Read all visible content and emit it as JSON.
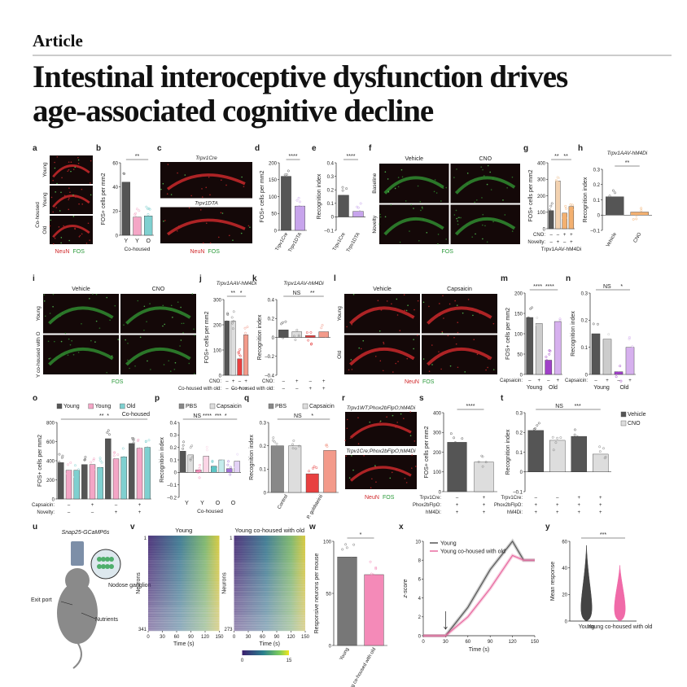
{
  "header": {
    "label": "Article",
    "title": [
      "Intestinal interoceptive dysfunction drives",
      "age-associated cognitive decline"
    ]
  },
  "panels": [
    {
      "letter": "a",
      "type": "image",
      "tint": "#c8282a",
      "row_labels": [
        "Young",
        "Young",
        "Old"
      ],
      "side_label": "Co-housed",
      "caption": [
        {
          "text": "NeuN",
          "color": "#d0282a"
        },
        {
          "text": "FOS",
          "color": "#2a9a3a"
        }
      ]
    },
    {
      "letter": "b",
      "type": "bar",
      "ylabel": "FOS+ cells per mm2",
      "ylim": [
        0,
        60
      ],
      "yticks": [
        0,
        20,
        40,
        60
      ],
      "values": [
        44,
        15,
        16
      ],
      "colors": [
        "#555555",
        "#f4a6c6",
        "#7fd0d0"
      ],
      "xlabels": [
        "Y",
        "Y",
        "O"
      ],
      "caption": "Co-housed",
      "sig": "**"
    },
    {
      "letter": "c",
      "type": "image",
      "tint": "#c8282a",
      "tile_titles": [
        "Trpv1Cre",
        "Trpv1DTA"
      ],
      "caption": [
        {
          "text": "NeuN",
          "color": "#d0282a"
        },
        {
          "text": "FOS",
          "color": "#2a9a3a"
        }
      ]
    },
    {
      "letter": "d",
      "type": "bar",
      "ylabel": "FOS+ cells per mm2",
      "ylim": [
        0,
        200
      ],
      "yticks": [
        0,
        50,
        100,
        150,
        200
      ],
      "values": [
        160,
        72
      ],
      "colors": [
        "#555555",
        "#c7a4ec"
      ],
      "xlabels": [
        "Trpv1Cre",
        "Trpv1DTA"
      ],
      "sig": "****"
    },
    {
      "letter": "e",
      "type": "bar",
      "ylabel": "Recognition index",
      "ylim": [
        -0.1,
        0.4
      ],
      "yticks": [
        {
          "value": -0.1,
          "label": "–0.1"
        },
        0,
        0.1,
        0.2,
        0.3,
        0.4
      ],
      "values": [
        0.16,
        0.04
      ],
      "colors": [
        "#555555",
        "#c7a4ec"
      ],
      "xlabels": [
        "Trpv1Cre",
        "Trpv1DTA"
      ],
      "sig": "****"
    },
    {
      "letter": "f",
      "type": "image",
      "tint": "#2f8a2f",
      "col_labels": [
        "Vehicle",
        "CNO"
      ],
      "row_labels": [
        "Baseline",
        "Novelty"
      ],
      "caption": [
        {
          "text": "FOS",
          "color": "#2a9a3a"
        }
      ]
    },
    {
      "letter": "g",
      "type": "bar",
      "ylabel": "FOS+ cells per mm2",
      "ylim": [
        0,
        400
      ],
      "yticks": [
        0,
        100,
        200,
        300,
        400
      ],
      "values": [
        110,
        290,
        95,
        135
      ],
      "colors": [
        "#555555",
        "#f3d2b0",
        "#f3b070",
        "#f3b070"
      ],
      "rows": [
        {
          "label": "CNO:",
          "marks": [
            "–",
            "–",
            "+",
            "+"
          ]
        },
        {
          "label": "Novelty:",
          "marks": [
            "–",
            "+",
            "–",
            "+"
          ]
        }
      ],
      "caption": "Trpv1AAV-hM4Di",
      "sig": "**   **"
    },
    {
      "letter": "h",
      "type": "bar",
      "title": "Trpv1AAV-hM4Di",
      "ylabel": "Recognition index",
      "ylim": [
        -0.1,
        0.3
      ],
      "yticks": [
        {
          "value": -0.1,
          "label": "–0.1"
        },
        0,
        0.1,
        0.2,
        0.3
      ],
      "values": [
        0.12,
        0.02
      ],
      "colors": [
        "#555555",
        "#f3b070"
      ],
      "xlabels": [
        "Vehicle",
        "CNO"
      ],
      "sig": "**"
    },
    {
      "letter": "i",
      "type": "image",
      "tint": "#2f8a2f",
      "col_labels": [
        "Vehicle",
        "CNO"
      ],
      "row_labels": [
        "Young",
        "Y co-housed with O"
      ],
      "caption": [
        {
          "text": "FOS",
          "color": "#2a9a3a"
        }
      ]
    },
    {
      "letter": "j",
      "type": "bar",
      "title": "Trpv1AAV-hM4Di",
      "ylabel": "FOS+ cells per mm2",
      "ylim": [
        0,
        300
      ],
      "yticks": [
        0,
        100,
        200,
        300
      ],
      "values": [
        215,
        215,
        65,
        160
      ],
      "colors": [
        "#555555",
        "#dddddd",
        "#e84040",
        "#f39a8a"
      ],
      "rows": [
        {
          "label": "CNO:",
          "marks": [
            "–",
            "+",
            "–",
            "+"
          ]
        },
        {
          "label": "Co-housed with old:",
          "marks": [
            "–",
            "–",
            "+",
            "+"
          ]
        }
      ],
      "sig": "**   *"
    },
    {
      "letter": "k",
      "type": "bar",
      "title": "Trpv1AAV-hM4Di",
      "ylabel": "Recognition index",
      "ylim": [
        -0.4,
        0.4
      ],
      "yticks": [
        {
          "value": -0.4,
          "label": "–0.4"
        },
        {
          "value": -0.2,
          "label": "–0.2"
        },
        0,
        0.2,
        0.4
      ],
      "values": [
        0.08,
        0.06,
        0.02,
        0.06
      ],
      "colors": [
        "#555555",
        "#dddddd",
        "#e84040",
        "#f39a8a"
      ],
      "rows": [
        {
          "label": "CNO:",
          "marks": [
            "–",
            "+",
            "–",
            "+"
          ]
        },
        {
          "label": "Co-housed with old:",
          "marks": [
            "–",
            "–",
            "+",
            "+"
          ]
        }
      ],
      "sig": "NS      **"
    },
    {
      "letter": "l",
      "type": "image",
      "tint": "#c8282a",
      "col_labels": [
        "Vehicle",
        "Capsaicin"
      ],
      "row_labels": [
        "Young",
        "Old"
      ],
      "caption": [
        {
          "text": "NeuN",
          "color": "#d0282a"
        },
        {
          "text": "FOS",
          "color": "#2a9a3a"
        }
      ]
    },
    {
      "letter": "m",
      "type": "bar",
      "ylabel": "FOS+ cells per mm2",
      "ylim": [
        0,
        200
      ],
      "yticks": [
        0,
        50,
        100,
        150,
        200
      ],
      "values": [
        140,
        125,
        35,
        130
      ],
      "colors": [
        "#555555",
        "#cccccc",
        "#a040c8",
        "#d6b0ee"
      ],
      "rows": [
        {
          "label": "Capsaicin:",
          "marks": [
            "–",
            "+",
            "–",
            "+"
          ]
        }
      ],
      "groups": [
        "Young",
        "Old"
      ],
      "sig": "****  ****"
    },
    {
      "letter": "n",
      "type": "bar",
      "ylabel": "Recognition index",
      "ylim": [
        0,
        0.3
      ],
      "yticks": [
        0,
        0.1,
        0.2,
        0.3
      ],
      "values": [
        0.15,
        0.13,
        0.01,
        0.1
      ],
      "colors": [
        "#555555",
        "#cccccc",
        "#a040c8",
        "#d6b0ee"
      ],
      "rows": [
        {
          "label": "Capsaicin:",
          "marks": [
            "–",
            "+",
            "–",
            "+"
          ]
        }
      ],
      "groups": [
        "Young",
        "Old"
      ],
      "sig": "NS      *"
    },
    {
      "letter": "o",
      "type": "bar",
      "ylabel": "FOS+ cells per mm2",
      "ylim": [
        0,
        800
      ],
      "yticks": [
        0,
        200,
        400,
        600,
        800
      ],
      "values": [
        380,
        300,
        300,
        360,
        360,
        330,
        630,
        420,
        440,
        580,
        530,
        540
      ],
      "colors": [
        "#555555",
        "#f4a6c6",
        "#7fd0d0"
      ],
      "legend": [
        {
          "name": "Young",
          "color": "#555555"
        },
        {
          "name": "Young",
          "color": "#f4a6c6"
        },
        {
          "name": "Old",
          "color": "#7fd0d0"
        }
      ],
      "legend_group": "Co-housed",
      "rows": [
        {
          "label": "Capsaicin:",
          "marks": [
            "–",
            "+",
            "–",
            "+"
          ]
        },
        {
          "label": "Novelty:",
          "marks": [
            "–",
            "–",
            "+",
            "+"
          ]
        }
      ],
      "sig": "**  *"
    },
    {
      "letter": "p",
      "type": "bar",
      "ylabel": "Recognition index",
      "ylim": [
        -0.2,
        0.4
      ],
      "yticks": [
        {
          "value": -0.2,
          "label": "–0.2"
        },
        {
          "value": -0.1,
          "label": "–0.1"
        },
        0,
        0.1,
        0.2,
        0.3,
        0.4
      ],
      "values": [
        0.17,
        0.14,
        0.02,
        0.13,
        0.05,
        0.1,
        0.03,
        0.09
      ],
      "colors": [
        "#555555",
        "#dddddd",
        "#f48ab8",
        "#fbd5e6",
        "#5cc4c4",
        "#c4ecec",
        "#a070d8",
        "#e3d2f6"
      ],
      "legend": [
        {
          "name": "PBS",
          "color": "#888888"
        },
        {
          "name": "Capsaicin",
          "color": "#dddddd"
        }
      ],
      "xlabels": [
        "Y",
        "Y",
        "O",
        "O"
      ],
      "caption": "Co-housed",
      "sig": "NS ****  ***  *"
    },
    {
      "letter": "q",
      "type": "bar",
      "ylabel": "Recognition index",
      "ylim": [
        0,
        0.3
      ],
      "yticks": [
        0,
        0.1,
        0.2,
        0.3
      ],
      "values": [
        0.2,
        0.2,
        0.08,
        0.18
      ],
      "colors": [
        "#888888",
        "#dddddd",
        "#e84040",
        "#f39a8a"
      ],
      "legend": [
        {
          "name": "PBS",
          "color": "#888888"
        },
        {
          "name": "Capsaicin",
          "color": "#dddddd"
        }
      ],
      "xlabels": [
        "Control",
        "P. goldsteinii"
      ],
      "sig": "NS      *"
    },
    {
      "letter": "r",
      "type": "image",
      "tint": "#c8282a",
      "tile_titles": [
        "Trpv1WT;Phox2bFlpO;hM4Di",
        "Trpv1Cre;Phox2bFlpO;hM4Di"
      ],
      "caption": [
        {
          "text": "NeuN",
          "color": "#d0282a"
        },
        {
          "text": "FOS",
          "color": "#2a9a3a"
        }
      ]
    },
    {
      "letter": "s",
      "type": "bar",
      "ylabel": "FOS+ cells per mm2",
      "ylim": [
        0,
        400
      ],
      "yticks": [
        0,
        100,
        200,
        300,
        400
      ],
      "values": [
        250,
        150
      ],
      "colors": [
        "#555555",
        "#dddddd"
      ],
      "rows": [
        {
          "label": "Trpv1Cre:",
          "marks": [
            "–",
            "+"
          ]
        },
        {
          "label": "Phox2bFlpO:",
          "marks": [
            "+",
            "+"
          ]
        },
        {
          "label": "hM4Di:",
          "marks": [
            "+",
            "+"
          ]
        }
      ],
      "sig": "****"
    },
    {
      "letter": "t",
      "type": "bar",
      "ylabel": "Recognition index",
      "ylim": [
        -0.1,
        0.3
      ],
      "yticks": [
        {
          "value": -0.1,
          "label": "–0.1"
        },
        0,
        0.1,
        0.2,
        0.3
      ],
      "values": [
        0.21,
        0.16,
        0.18,
        0.09
      ],
      "colors": [
        "#555555",
        "#dddddd",
        "#555555",
        "#dddddd"
      ],
      "legend": [
        {
          "name": "Vehicle",
          "color": "#555555"
        },
        {
          "name": "CNO",
          "color": "#dddddd"
        }
      ],
      "rows": [
        {
          "label": "Trpv1Cre:",
          "marks": [
            "–",
            "–",
            "+",
            "+"
          ]
        },
        {
          "label": "Phox2bFlpO:",
          "marks": [
            "+",
            "+",
            "+",
            "+"
          ]
        },
        {
          "label": "hM4Di:",
          "marks": [
            "+",
            "+",
            "+",
            "+"
          ]
        }
      ],
      "sig": "NS       ***"
    },
    {
      "letter": "u",
      "type": "diagram",
      "labels": {
        "title": "Snap25-GCaMP6s",
        "ganglion": "Nodose ganglion",
        "port": "Exit port",
        "nutrients": "Nutrients"
      }
    },
    {
      "letter": "v",
      "type": "heatmap",
      "ylabel": "Neurons",
      "xlabel": "Time (s)",
      "xlim": [
        0,
        150
      ],
      "xticks": [
        0,
        30,
        60,
        90,
        120,
        150
      ],
      "clim": [
        0,
        15
      ],
      "cticks": [
        0,
        15
      ],
      "maps": [
        {
          "title": "Young",
          "yticks": [
            1,
            341
          ]
        },
        {
          "title": "Young co-housed with old",
          "yticks": [
            1,
            273
          ]
        }
      ]
    },
    {
      "letter": "w",
      "type": "bar",
      "ylabel": "Responsive neurons per mouse",
      "ylim": [
        0,
        100
      ],
      "yticks": [
        0,
        50,
        100
      ],
      "values": [
        85,
        68
      ],
      "colors": [
        "#777777",
        "#f48ab8"
      ],
      "xlabels": [
        "Young",
        "Young co-housed with old"
      ],
      "sig": "*"
    },
    {
      "letter": "x",
      "type": "line",
      "ylabel": "z-score",
      "xlabel": "Time (s)",
      "xlim": [
        0,
        150
      ],
      "xticks": [
        0,
        30,
        60,
        90,
        120,
        150
      ],
      "ylim": [
        0,
        10
      ],
      "yticks": [
        0,
        2,
        4,
        6,
        8,
        10
      ],
      "x": [
        0,
        30,
        45,
        60,
        90,
        120,
        135,
        150
      ],
      "series": [
        {
          "name": "Young",
          "color": "#555555",
          "values": [
            0,
            0,
            1.5,
            3,
            7,
            10,
            8,
            8
          ]
        },
        {
          "name": "Young co-housed with old",
          "color": "#e86aa0",
          "values": [
            0,
            0,
            1,
            2,
            5,
            8.5,
            8,
            8
          ]
        }
      ]
    },
    {
      "letter": "y",
      "type": "violin",
      "ylabel": "Mean response",
      "ylim": [
        0,
        60
      ],
      "yticks": [
        0,
        20,
        40,
        60
      ],
      "colors": [
        "#444444",
        "#f06aa8"
      ],
      "xlabels": [
        "Young",
        "Young co-housed with old"
      ],
      "sig": "***"
    }
  ]
}
